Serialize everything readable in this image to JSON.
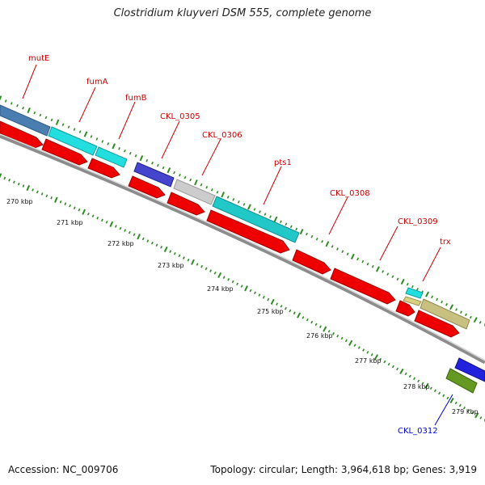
{
  "title": "Clostridium kluyveri DSM 555, complete genome",
  "accession": "Accession: NC_009706",
  "summary": "Topology: circular; Length: 3,964,618 bp; Genes: 3,919",
  "colors": {
    "backbone": "#8c8c8c",
    "tick": "#2e8b22",
    "label_forward": "#cc0000",
    "label_reverse": "#0000cc",
    "cds": "#ee0000"
  },
  "kbp_labels": [
    "270 kbp",
    "271 kbp",
    "272 kbp",
    "273 kbp",
    "274 kbp",
    "275 kbp",
    "276 kbp",
    "277 kbp",
    "278 kbp",
    "279 kbp"
  ],
  "genes": [
    {
      "name": "mutE",
      "color": "#cc0000"
    },
    {
      "name": "fumA",
      "color": "#cc0000"
    },
    {
      "name": "fumB",
      "color": "#cc0000"
    },
    {
      "name": "CKL_0305",
      "color": "#cc0000"
    },
    {
      "name": "CKL_0306",
      "color": "#cc0000"
    },
    {
      "name": "pts1",
      "color": "#cc0000"
    },
    {
      "name": "CKL_0308",
      "color": "#cc0000"
    },
    {
      "name": "CKL_0309",
      "color": "#cc0000"
    },
    {
      "name": "trx",
      "color": "#cc0000"
    },
    {
      "name": "CKL_0312",
      "color": "#0000cc"
    }
  ]
}
